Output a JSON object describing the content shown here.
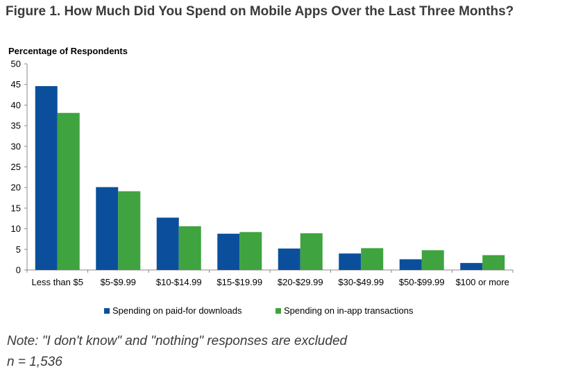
{
  "figure": {
    "title": "Figure 1. How Much Did You Spend on Mobile Apps Over the Last Three Months?",
    "note": "Note: \"I don't know\" and \"nothing\" responses are excluded",
    "sample": "n = 1,536"
  },
  "chart_data": {
    "type": "bar",
    "title": "Figure 1. How Much Did You Spend on Mobile Apps Over the Last Three Months?",
    "ylabel": "Percentage of Respondents",
    "xlabel": "",
    "ylim": [
      0,
      50
    ],
    "yticks": [
      "0",
      "5",
      "10",
      "15",
      "20",
      "25",
      "30",
      "35",
      "40",
      "45",
      "50"
    ],
    "grid": false,
    "legend_position": "bottom",
    "categories": [
      "Less than $5",
      "$5-$9.99",
      "$10-$14.99",
      "$15-$19.99",
      "$20-$29.99",
      "$30-$49.99",
      "$50-$99.99",
      "$100 or more"
    ],
    "series": [
      {
        "name": "Spending on paid-for downloads",
        "color": "#0b4f9c",
        "values": [
          44.6,
          20.1,
          12.7,
          8.8,
          5.2,
          4.0,
          2.6,
          1.7
        ]
      },
      {
        "name": "Spending on in-app transactions",
        "color": "#3fa33f",
        "values": [
          38.1,
          19.1,
          10.6,
          9.2,
          8.9,
          5.3,
          4.8,
          3.6
        ]
      }
    ]
  }
}
